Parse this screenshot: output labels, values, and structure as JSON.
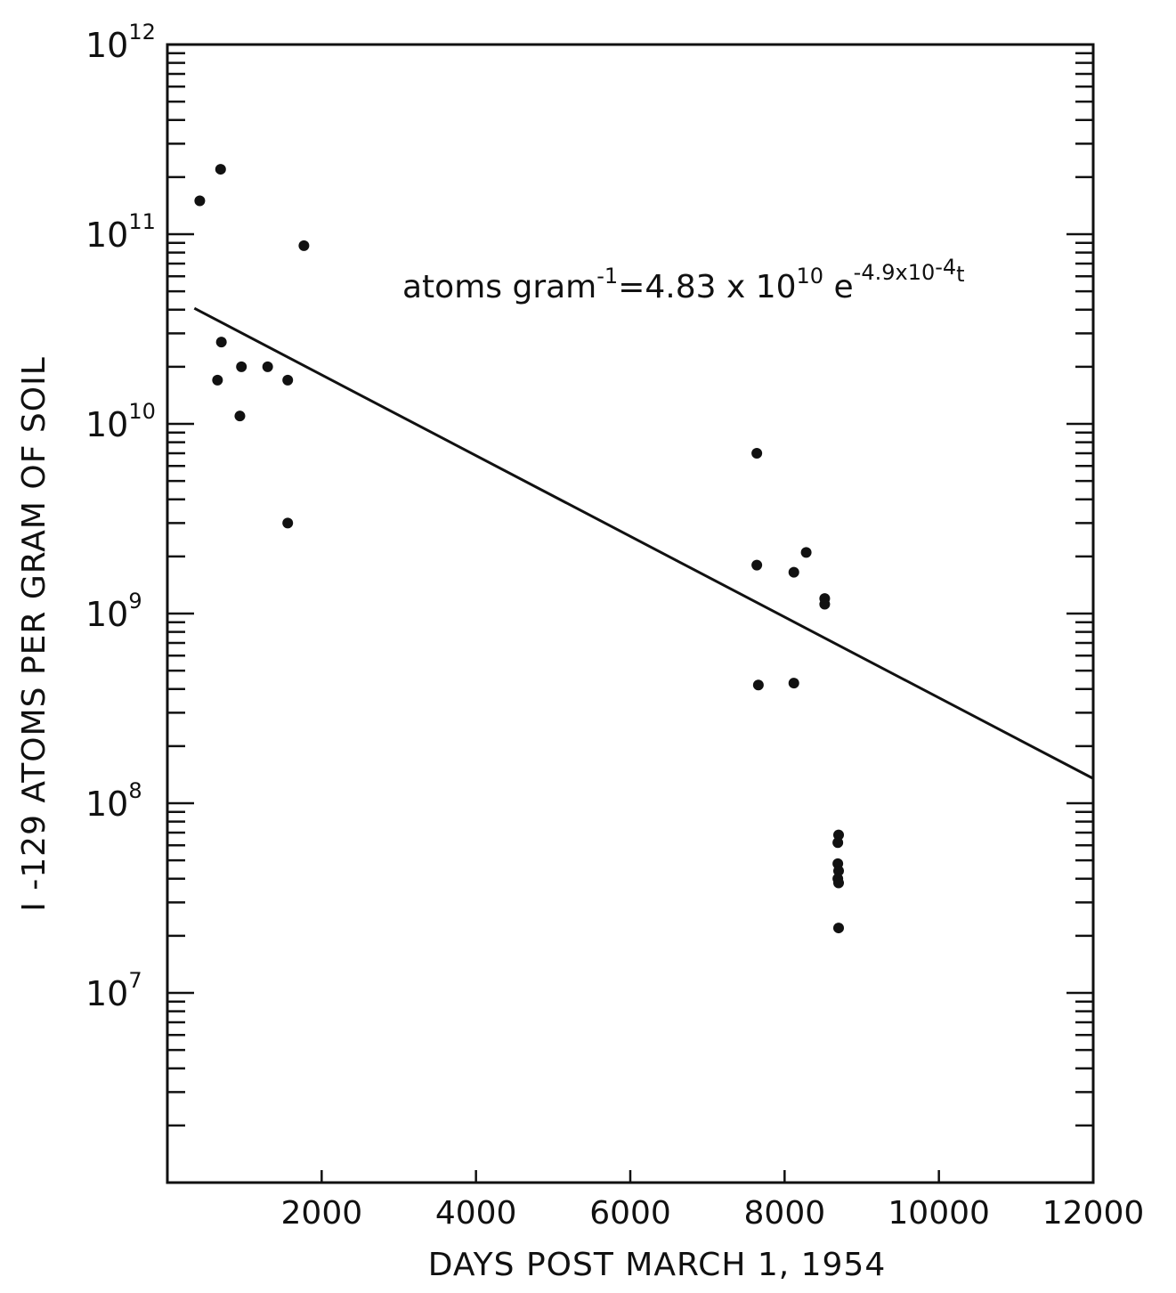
{
  "chart_data": {
    "type": "scatter",
    "xlabel": "DAYS POST MARCH 1, 1954",
    "ylabel": "I -129 ATOMS PER GRAM OF SOIL",
    "xlim": [
      0,
      12000
    ],
    "ylim": [
      1000000,
      1000000000000
    ],
    "yscale": "log",
    "grid": false,
    "x_ticks": [
      2000,
      4000,
      6000,
      8000,
      10000,
      12000
    ],
    "x_tick_labels": [
      "2000",
      "4000",
      "6000",
      "8000",
      "10000",
      "12000"
    ],
    "y_ticks": [
      {
        "value": 10000000,
        "base": "10",
        "exp": "7"
      },
      {
        "value": 100000000,
        "base": "10",
        "exp": "8"
      },
      {
        "value": 1000000000,
        "base": "10",
        "exp": "9"
      },
      {
        "value": 10000000000,
        "base": "10",
        "exp": "10"
      },
      {
        "value": 100000000000,
        "base": "10",
        "exp": "11"
      },
      {
        "value": 1000000000000,
        "base": "10",
        "exp": "12"
      }
    ],
    "points": [
      {
        "x": 420,
        "y": 150000000000
      },
      {
        "x": 690,
        "y": 220000000000
      },
      {
        "x": 1770,
        "y": 87000000000
      },
      {
        "x": 700,
        "y": 27000000000
      },
      {
        "x": 650,
        "y": 17000000000
      },
      {
        "x": 960,
        "y": 20000000000
      },
      {
        "x": 1300,
        "y": 20000000000
      },
      {
        "x": 1560,
        "y": 17000000000
      },
      {
        "x": 940,
        "y": 11000000000
      },
      {
        "x": 1560,
        "y": 3000000000
      },
      {
        "x": 7640,
        "y": 7000000000
      },
      {
        "x": 7640,
        "y": 1800000000
      },
      {
        "x": 8280,
        "y": 2100000000
      },
      {
        "x": 8120,
        "y": 1650000000
      },
      {
        "x": 8520,
        "y": 1200000000
      },
      {
        "x": 8520,
        "y": 1120000000
      },
      {
        "x": 7660,
        "y": 420000000
      },
      {
        "x": 8120,
        "y": 430000000
      },
      {
        "x": 8700,
        "y": 68000000
      },
      {
        "x": 8690,
        "y": 62000000
      },
      {
        "x": 8690,
        "y": 48000000
      },
      {
        "x": 8700,
        "y": 44000000
      },
      {
        "x": 8690,
        "y": 40000000
      },
      {
        "x": 8700,
        "y": 38000000
      },
      {
        "x": 8700,
        "y": 22000000
      }
    ],
    "fit": {
      "A": 48300000000,
      "k": 0.00049,
      "x_range": [
        350,
        12000
      ],
      "equation": {
        "lead": "atoms gram",
        "sup1": "-1",
        "mid1": "=4.83 x 10",
        "sup2": "10",
        "mid2": " e",
        "sup3": "-4.9x10",
        "sup3b": "-4",
        "tail": "t"
      }
    }
  }
}
